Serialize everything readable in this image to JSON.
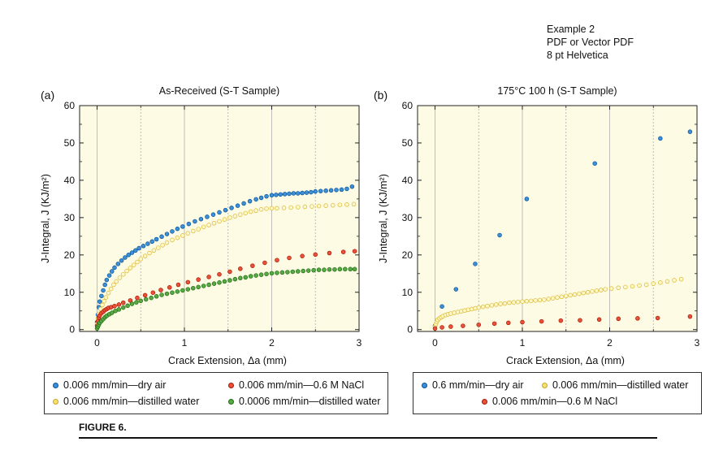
{
  "example_note": [
    "Example 2",
    "PDF or Vector PDF",
    "8 pt Helvetica"
  ],
  "figure_caption": "FIGURE 6.",
  "colors": {
    "plot_bg": "#fdfbe4",
    "blue": "#3f8fd6",
    "yellow": "#f7e173",
    "red": "#e8513a",
    "green": "#58a848",
    "grid": "#b0b0b0"
  },
  "chart_data": [
    {
      "id": "a",
      "panel_label": "(a)",
      "type": "scatter",
      "title": "As-Received (S-T Sample)",
      "xlabel": "Crack Extension, Δa (mm)",
      "ylabel": "J-Integral, J (KJ/m²)",
      "xlim": [
        -0.2,
        3.0
      ],
      "ylim": [
        -0.5,
        60
      ],
      "xticks": [
        0,
        1,
        2,
        3
      ],
      "yticks": [
        0,
        10,
        20,
        30,
        40,
        50,
        60
      ],
      "x_solid_grid": [
        0,
        1,
        2
      ],
      "x_dashed_grid": [
        0.5,
        1.5,
        2.5
      ],
      "series": [
        {
          "name": "0.006 mm/min—dry air",
          "color": "blue",
          "x": [
            0.0,
            0.01,
            0.02,
            0.03,
            0.05,
            0.07,
            0.09,
            0.11,
            0.14,
            0.17,
            0.2,
            0.24,
            0.28,
            0.32,
            0.36,
            0.4,
            0.44,
            0.48,
            0.53,
            0.58,
            0.63,
            0.68,
            0.74,
            0.8,
            0.86,
            0.92,
            0.98,
            1.05,
            1.12,
            1.19,
            1.26,
            1.33,
            1.4,
            1.47,
            1.54,
            1.61,
            1.68,
            1.75,
            1.82,
            1.88,
            1.94,
            2.0,
            2.05,
            2.1,
            2.15,
            2.2,
            2.25,
            2.3,
            2.35,
            2.4,
            2.45,
            2.5,
            2.56,
            2.62,
            2.68,
            2.74,
            2.8,
            2.86,
            2.92
          ],
          "y": [
            2.0,
            4.0,
            6.0,
            7.5,
            9.0,
            10.5,
            12.0,
            13.3,
            14.5,
            15.6,
            16.6,
            17.6,
            18.5,
            19.3,
            20.0,
            20.6,
            21.2,
            21.8,
            22.4,
            23.0,
            23.6,
            24.2,
            24.9,
            25.6,
            26.3,
            27.0,
            27.6,
            28.3,
            29.0,
            29.6,
            30.2,
            30.8,
            31.4,
            32.0,
            32.6,
            33.2,
            33.8,
            34.4,
            34.9,
            35.3,
            35.7,
            36.0,
            36.1,
            36.2,
            36.3,
            36.4,
            36.5,
            36.5,
            36.6,
            36.7,
            36.8,
            37.0,
            37.1,
            37.2,
            37.3,
            37.4,
            37.5,
            37.7,
            38.3
          ]
        },
        {
          "name": "0.006 mm/min—distilled water",
          "color": "yellow",
          "x": [
            0.0,
            0.01,
            0.02,
            0.04,
            0.06,
            0.08,
            0.1,
            0.13,
            0.16,
            0.19,
            0.22,
            0.26,
            0.3,
            0.34,
            0.38,
            0.42,
            0.46,
            0.5,
            0.55,
            0.6,
            0.65,
            0.7,
            0.75,
            0.8,
            0.86,
            0.92,
            0.98,
            1.04,
            1.1,
            1.16,
            1.22,
            1.28,
            1.34,
            1.4,
            1.46,
            1.52,
            1.58,
            1.64,
            1.7,
            1.76,
            1.82,
            1.88,
            1.94,
            2.0,
            2.06,
            2.14,
            2.22,
            2.3,
            2.38,
            2.46,
            2.54,
            2.62,
            2.7,
            2.78,
            2.86,
            2.94
          ],
          "y": [
            1.5,
            3.0,
            4.2,
            5.5,
            6.6,
            7.6,
            8.6,
            9.8,
            10.9,
            12.0,
            12.9,
            13.9,
            14.8,
            15.7,
            16.5,
            17.3,
            18.1,
            18.9,
            19.7,
            20.5,
            21.2,
            21.9,
            22.6,
            23.3,
            24.0,
            24.6,
            25.2,
            25.8,
            26.4,
            26.9,
            27.5,
            28.0,
            28.5,
            29.0,
            29.5,
            30.0,
            30.4,
            30.8,
            31.2,
            31.6,
            31.9,
            32.2,
            32.4,
            32.5,
            32.5,
            32.6,
            32.7,
            32.8,
            32.9,
            33.0,
            33.1,
            33.2,
            33.3,
            33.4,
            33.5,
            33.6
          ]
        },
        {
          "name": "0.006 mm/min—0.6 M NaCl",
          "color": "red",
          "x": [
            0.0,
            0.01,
            0.02,
            0.03,
            0.05,
            0.07,
            0.09,
            0.11,
            0.13,
            0.16,
            0.2,
            0.25,
            0.3,
            0.38,
            0.46,
            0.55,
            0.64,
            0.73,
            0.83,
            0.93,
            1.04,
            1.16,
            1.28,
            1.4,
            1.52,
            1.64,
            1.78,
            1.92,
            2.06,
            2.2,
            2.35,
            2.5,
            2.66,
            2.82,
            2.95
          ],
          "y": [
            1.0,
            2.2,
            3.2,
            3.8,
            4.4,
            4.8,
            5.2,
            5.5,
            5.8,
            6.0,
            6.3,
            6.7,
            7.2,
            7.8,
            8.5,
            9.2,
            9.9,
            10.6,
            11.3,
            12.0,
            12.7,
            13.4,
            14.1,
            14.8,
            15.5,
            16.3,
            17.1,
            17.9,
            18.6,
            19.2,
            19.7,
            20.1,
            20.5,
            20.8,
            21.0
          ]
        },
        {
          "name": "0.0006 mm/min—distilled water",
          "color": "green",
          "x": [
            0.0,
            0.01,
            0.02,
            0.03,
            0.05,
            0.07,
            0.09,
            0.11,
            0.14,
            0.17,
            0.21,
            0.25,
            0.3,
            0.35,
            0.4,
            0.45,
            0.5,
            0.56,
            0.62,
            0.68,
            0.74,
            0.8,
            0.86,
            0.92,
            0.98,
            1.04,
            1.1,
            1.16,
            1.22,
            1.28,
            1.34,
            1.4,
            1.46,
            1.52,
            1.58,
            1.64,
            1.7,
            1.76,
            1.82,
            1.88,
            1.94,
            2.0,
            2.06,
            2.12,
            2.18,
            2.24,
            2.3,
            2.36,
            2.42,
            2.48,
            2.54,
            2.6,
            2.66,
            2.72,
            2.78,
            2.84,
            2.9,
            2.95
          ],
          "y": [
            0.3,
            0.8,
            1.3,
            1.8,
            2.3,
            2.8,
            3.3,
            3.7,
            4.1,
            4.5,
            5.0,
            5.4,
            5.9,
            6.4,
            6.9,
            7.3,
            7.7,
            8.1,
            8.5,
            8.9,
            9.3,
            9.6,
            9.9,
            10.2,
            10.5,
            10.8,
            11.1,
            11.4,
            11.7,
            12.0,
            12.3,
            12.6,
            12.9,
            13.2,
            13.5,
            13.8,
            14.0,
            14.3,
            14.5,
            14.7,
            14.9,
            15.1,
            15.2,
            15.3,
            15.4,
            15.5,
            15.6,
            15.7,
            15.8,
            15.9,
            16.0,
            16.0,
            16.1,
            16.1,
            16.2,
            16.2,
            16.2,
            16.2
          ]
        }
      ],
      "legend": {
        "placement": "bottom",
        "items": [
          {
            "label": "0.006 mm/min—dry air",
            "color": "blue"
          },
          {
            "label": "0.006 mm/min—0.6 M NaCl",
            "color": "red"
          },
          {
            "label": "0.006 mm/min—distilled water",
            "color": "yellow"
          },
          {
            "label": "0.0006 mm/min—distilled water",
            "color": "green"
          }
        ]
      }
    },
    {
      "id": "b",
      "panel_label": "(b)",
      "type": "scatter",
      "title": "175°C 100 h (S-T Sample)",
      "xlabel": "Crack Extension, Δa (mm)",
      "ylabel": "J-Integral, J (KJ/m²)",
      "xlim": [
        -0.2,
        3.0
      ],
      "ylim": [
        -0.5,
        60
      ],
      "xticks": [
        0,
        1,
        2,
        3
      ],
      "yticks": [
        0,
        10,
        20,
        30,
        40,
        50,
        60
      ],
      "x_solid_grid": [
        0,
        1,
        2
      ],
      "x_dashed_grid": [
        0.5,
        1.5,
        2.5
      ],
      "series": [
        {
          "name": "0.6 mm/min—dry air",
          "color": "blue",
          "x": [
            0.0,
            0.08,
            0.24,
            0.46,
            0.74,
            1.05,
            1.83,
            2.58,
            2.92
          ],
          "y": [
            1.0,
            6.2,
            10.8,
            17.6,
            25.3,
            35.0,
            44.5,
            51.2,
            53.0
          ]
        },
        {
          "name": "0.006 mm/min—distilled water",
          "color": "yellow",
          "x": [
            0.0,
            0.01,
            0.02,
            0.03,
            0.05,
            0.07,
            0.09,
            0.12,
            0.15,
            0.18,
            0.22,
            0.26,
            0.3,
            0.34,
            0.38,
            0.42,
            0.46,
            0.5,
            0.55,
            0.6,
            0.65,
            0.7,
            0.75,
            0.8,
            0.85,
            0.9,
            0.95,
            1.0,
            1.05,
            1.1,
            1.15,
            1.2,
            1.25,
            1.3,
            1.35,
            1.4,
            1.45,
            1.5,
            1.55,
            1.6,
            1.65,
            1.7,
            1.75,
            1.8,
            1.85,
            1.9,
            1.95,
            2.02,
            2.1,
            2.18,
            2.26,
            2.34,
            2.42,
            2.5,
            2.58,
            2.66,
            2.74,
            2.82
          ],
          "y": [
            0.8,
            1.5,
            2.1,
            2.6,
            3.0,
            3.3,
            3.6,
            3.9,
            4.1,
            4.3,
            4.5,
            4.7,
            4.9,
            5.1,
            5.3,
            5.5,
            5.7,
            5.9,
            6.1,
            6.3,
            6.5,
            6.7,
            6.9,
            7.0,
            7.2,
            7.3,
            7.4,
            7.5,
            7.6,
            7.7,
            7.8,
            7.9,
            8.0,
            8.2,
            8.4,
            8.6,
            8.8,
            9.0,
            9.2,
            9.4,
            9.6,
            9.8,
            10.0,
            10.2,
            10.4,
            10.6,
            10.8,
            11.0,
            11.2,
            11.4,
            11.6,
            11.8,
            12.0,
            12.3,
            12.6,
            12.9,
            13.2,
            13.5
          ]
        },
        {
          "name": "0.006 mm/min—0.6 M NaCl",
          "color": "red",
          "x": [
            0.0,
            0.08,
            0.18,
            0.32,
            0.5,
            0.68,
            0.84,
            1.0,
            1.22,
            1.44,
            1.66,
            1.88,
            2.1,
            2.32,
            2.55,
            2.92
          ],
          "y": [
            0.3,
            0.6,
            0.8,
            1.0,
            1.3,
            1.6,
            1.8,
            2.0,
            2.2,
            2.4,
            2.5,
            2.7,
            2.9,
            3.0,
            3.1,
            3.5
          ]
        }
      ],
      "legend": {
        "placement": "bottom",
        "items": [
          {
            "label": "0.6 mm/min—dry air",
            "color": "blue"
          },
          {
            "label": "0.006 mm/min—distilled water",
            "color": "yellow"
          },
          {
            "label": "0.006 mm/min—0.6 M NaCl",
            "color": "red"
          }
        ]
      }
    }
  ]
}
